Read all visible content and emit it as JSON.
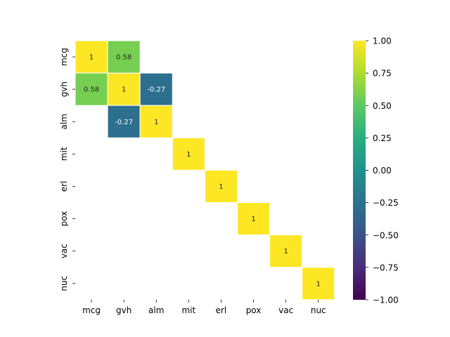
{
  "chart_data": {
    "type": "heatmap",
    "title": "",
    "xlabel": "",
    "ylabel": "",
    "labels": [
      "mcg",
      "gvh",
      "alm",
      "mit",
      "erl",
      "pox",
      "vac",
      "nuc"
    ],
    "cells": [
      {
        "row": 0,
        "col": 0,
        "value": 1,
        "label": "1"
      },
      {
        "row": 0,
        "col": 1,
        "value": 0.58,
        "label": "0.58"
      },
      {
        "row": 1,
        "col": 0,
        "value": 0.58,
        "label": "0.58"
      },
      {
        "row": 1,
        "col": 1,
        "value": 1,
        "label": "1"
      },
      {
        "row": 1,
        "col": 2,
        "value": -0.27,
        "label": "-0.27"
      },
      {
        "row": 2,
        "col": 1,
        "value": -0.27,
        "label": "-0.27"
      },
      {
        "row": 2,
        "col": 2,
        "value": 1,
        "label": "1"
      },
      {
        "row": 3,
        "col": 3,
        "value": 1,
        "label": "1"
      },
      {
        "row": 4,
        "col": 4,
        "value": 1,
        "label": "1"
      },
      {
        "row": 5,
        "col": 5,
        "value": 1,
        "label": "1"
      },
      {
        "row": 6,
        "col": 6,
        "value": 1,
        "label": "1"
      },
      {
        "row": 7,
        "col": 7,
        "value": 1,
        "label": "1"
      }
    ],
    "colorbar": {
      "colormap": "viridis",
      "vmin": -1.0,
      "vmax": 1.0,
      "ticks": [
        "1.00",
        "0.75",
        "0.50",
        "0.25",
        "0.00",
        "−0.25",
        "−0.50",
        "−0.75",
        "−1.00"
      ]
    },
    "grid": false
  }
}
